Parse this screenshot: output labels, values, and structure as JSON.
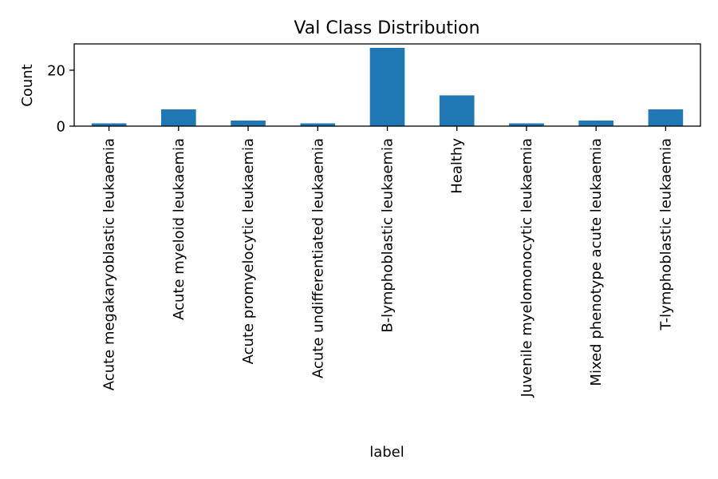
{
  "chart_data": {
    "type": "bar",
    "title": "Val Class Distribution",
    "xlabel": "label",
    "ylabel": "Count",
    "categories": [
      "Acute megakaryoblastic leukaemia",
      "Acute myeloid leukaemia",
      "Acute promyelocytic leukaemia",
      "Acute undifferentiated leukaemia",
      "B-lymphoblastic leukaemia",
      "Healthy",
      "Juvenile myelomonocytic leukaemia",
      "Mixed phenotype acute leukaemia",
      "T-lymphoblastic leukaemia"
    ],
    "values": [
      1,
      6,
      2,
      1,
      28,
      11,
      1,
      2,
      6
    ],
    "ylim": [
      0,
      29.4
    ],
    "yticks": [
      0,
      20
    ],
    "bar_color": "#1f77b4",
    "grid": false,
    "legend": "none"
  }
}
